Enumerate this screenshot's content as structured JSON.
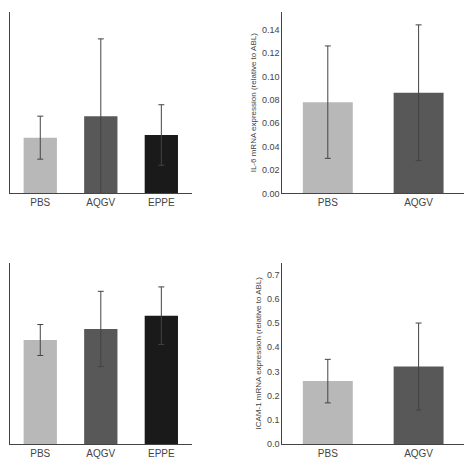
{
  "chart_data": [
    {
      "type": "bar",
      "categories": [
        "PBS",
        "AQGV",
        "EPPE"
      ],
      "values": [
        0.083,
        0.115,
        0.087
      ],
      "errors": [
        0.032,
        0.115,
        0.045
      ],
      "colors": [
        "#b8b8b8",
        "#585858",
        "#1a1a1a"
      ],
      "ylim": [
        0,
        0.27
      ],
      "tick_labels": "x",
      "grid": false
    },
    {
      "type": "bar",
      "categories": [
        "PBS",
        "AQGV"
      ],
      "values": [
        0.078,
        0.086
      ],
      "errors": [
        0.048,
        0.058
      ],
      "colors": [
        "#b8b8b8",
        "#585858"
      ],
      "ylabel": "IL-6 mRNA expression (relative to ABL)",
      "ylim": [
        0,
        0.155
      ],
      "yticks": [
        {
          "value": 0,
          "label": "0.00"
        },
        0.02,
        0.04,
        0.06,
        0.08,
        {
          "value": 0.1,
          "label": "0.10"
        },
        0.12,
        0.14
      ],
      "grid": false
    },
    {
      "type": "bar",
      "categories": [
        "PBS",
        "AQGV",
        "EPPE"
      ],
      "values": [
        0.47,
        0.52,
        0.58
      ],
      "errors": [
        0.07,
        0.17,
        0.13
      ],
      "colors": [
        "#b8b8b8",
        "#585858",
        "#1a1a1a"
      ],
      "ylim": [
        0,
        0.82
      ],
      "tick_labels": "x",
      "grid": false
    },
    {
      "type": "bar",
      "categories": [
        "PBS",
        "AQGV"
      ],
      "values": [
        0.26,
        0.32
      ],
      "errors": [
        0.09,
        0.18
      ],
      "colors": [
        "#b8b8b8",
        "#585858"
      ],
      "ylabel": "ICAM-1 mRNA expression (relative to ABL)",
      "ylim": [
        0,
        0.75
      ],
      "yticks": [
        {
          "value": 0,
          "label": "0.0"
        },
        0.1,
        0.2,
        0.3,
        0.4,
        0.5,
        0.6,
        0.7
      ],
      "grid": false
    }
  ]
}
